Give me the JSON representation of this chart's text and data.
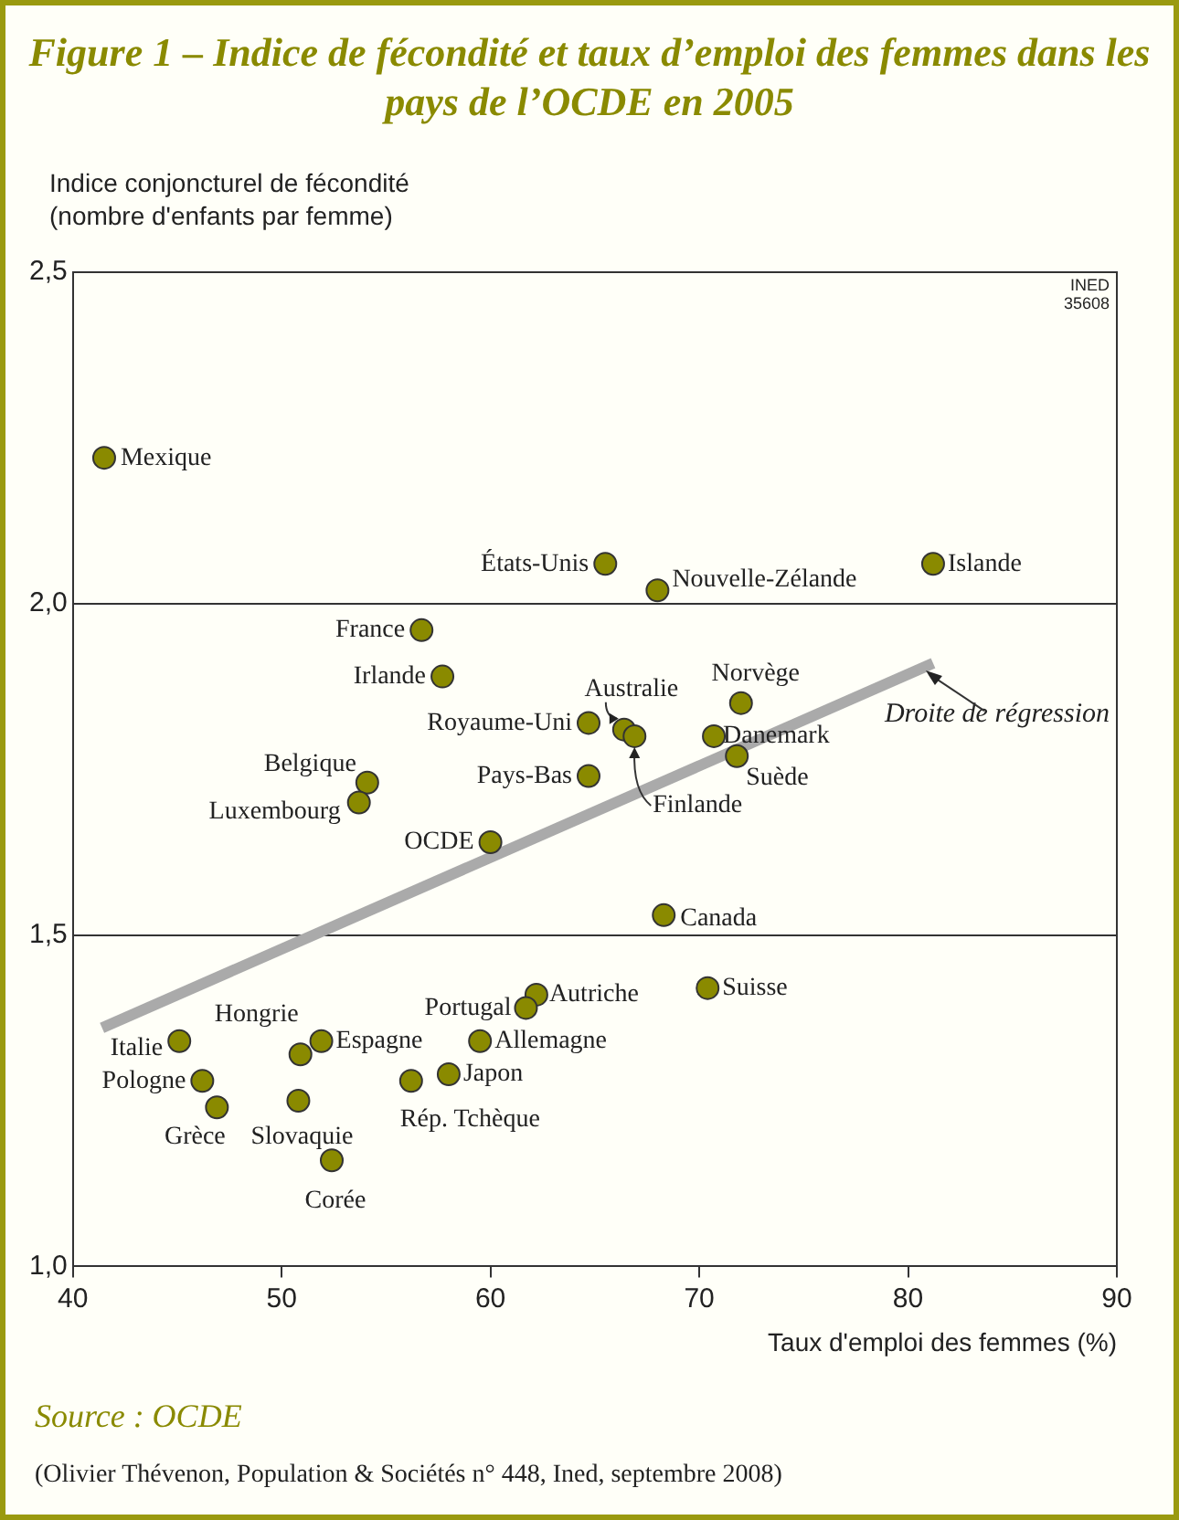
{
  "chart_data": {
    "type": "scatter",
    "title": "Figure 1 – Indice de fécondité et taux d’emploi des femmes dans les pays de l’OCDE en 2005",
    "ylabel": "Indice conjoncturel de fécondité\n(nombre d'enfants par femme)",
    "xlabel": "Taux d'emploi des femmes (%)",
    "xlim": [
      40,
      90
    ],
    "xticks": [
      40,
      50,
      60,
      70,
      80,
      90
    ],
    "ylim": [
      1.0,
      2.5
    ],
    "yticks": [
      {
        "value": 1.0,
        "label": "1,0"
      },
      {
        "value": 1.5,
        "label": "1,5"
      },
      {
        "value": 2.0,
        "label": "2,0"
      },
      {
        "value": 2.5,
        "label": "2,5"
      }
    ],
    "grid": "y",
    "legend": false,
    "series": [
      {
        "marker": "circle",
        "color": "#8a8a00",
        "x": [
          41.5,
          65.5,
          68.0,
          81.2,
          56.7,
          57.7,
          64.7,
          66.4,
          66.9,
          64.7,
          54.1,
          53.7,
          60.0,
          72.0,
          70.7,
          71.8,
          68.3,
          70.4,
          62.2,
          61.7,
          59.5,
          58.0,
          56.2,
          51.9,
          50.9,
          50.8,
          52.4,
          45.1,
          46.2,
          46.9
        ],
        "values": [
          2.22,
          2.06,
          2.02,
          2.06,
          1.96,
          1.89,
          1.82,
          1.81,
          1.8,
          1.74,
          1.73,
          1.7,
          1.64,
          1.85,
          1.8,
          1.77,
          1.53,
          1.42,
          1.41,
          1.39,
          1.34,
          1.29,
          1.28,
          1.34,
          1.32,
          1.25,
          1.16,
          1.34,
          1.28,
          1.24
        ]
      },
      {
        "type": "line",
        "marker": "none",
        "name": "Droite de régression",
        "color": "#aaaaaa",
        "x": [
          41.4,
          81.2
        ],
        "values": [
          1.36,
          1.91
        ]
      }
    ],
    "annotations": [
      "INED\n35608",
      {
        "text": "Mexique",
        "x": 41.5,
        "y": 2.22
      },
      {
        "text": "États-Unis",
        "x": 65.5,
        "y": 2.06
      },
      {
        "text": "Nouvelle-Zélande",
        "x": 68.0,
        "y": 2.02
      },
      {
        "text": "Islande",
        "x": 81.2,
        "y": 2.06
      },
      {
        "text": "France",
        "x": 56.7,
        "y": 1.96
      },
      {
        "text": "Irlande",
        "x": 57.7,
        "y": 1.89
      },
      {
        "text": "Royaume-Uni",
        "x": 64.7,
        "y": 1.82
      },
      {
        "text": "Australie",
        "x": 66.4,
        "y": 1.81
      },
      {
        "text": "Finlande",
        "x": 66.9,
        "y": 1.8
      },
      {
        "text": "Pays-Bas",
        "x": 64.7,
        "y": 1.74
      },
      {
        "text": "Belgique",
        "x": 54.1,
        "y": 1.73
      },
      {
        "text": "Luxembourg",
        "x": 53.7,
        "y": 1.7
      },
      {
        "text": "OCDE",
        "x": 60.0,
        "y": 1.64
      },
      {
        "text": "Norvège",
        "x": 72.0,
        "y": 1.85
      },
      {
        "text": "Danemark",
        "x": 70.7,
        "y": 1.8
      },
      {
        "text": "Suède",
        "x": 71.8,
        "y": 1.77
      },
      {
        "text": "Canada",
        "x": 68.3,
        "y": 1.53
      },
      {
        "text": "Suisse",
        "x": 70.4,
        "y": 1.42
      },
      {
        "text": "Autriche",
        "x": 62.2,
        "y": 1.41
      },
      {
        "text": "Portugal",
        "x": 61.7,
        "y": 1.39
      },
      {
        "text": "Allemagne",
        "x": 59.5,
        "y": 1.34
      },
      {
        "text": "Japon",
        "x": 58.0,
        "y": 1.29
      },
      {
        "text": "Rép. Tchèque",
        "x": 56.2,
        "y": 1.28
      },
      {
        "text": "Espagne",
        "x": 51.9,
        "y": 1.34
      },
      {
        "text": "Hongrie",
        "x": 50.9,
        "y": 1.32
      },
      {
        "text": "Slovaquie",
        "x": 50.8,
        "y": 1.25
      },
      {
        "text": "Corée",
        "x": 52.4,
        "y": 1.16
      },
      {
        "text": "Italie",
        "x": 45.1,
        "y": 1.34
      },
      {
        "text": "Pologne",
        "x": 46.2,
        "y": 1.28
      },
      {
        "text": "Grèce",
        "x": 46.9,
        "y": 1.24
      },
      "Source : OCDE",
      "(Olivier Thévenon, Population & Sociétés n° 448, Ined, septembre 2008)"
    ]
  }
}
